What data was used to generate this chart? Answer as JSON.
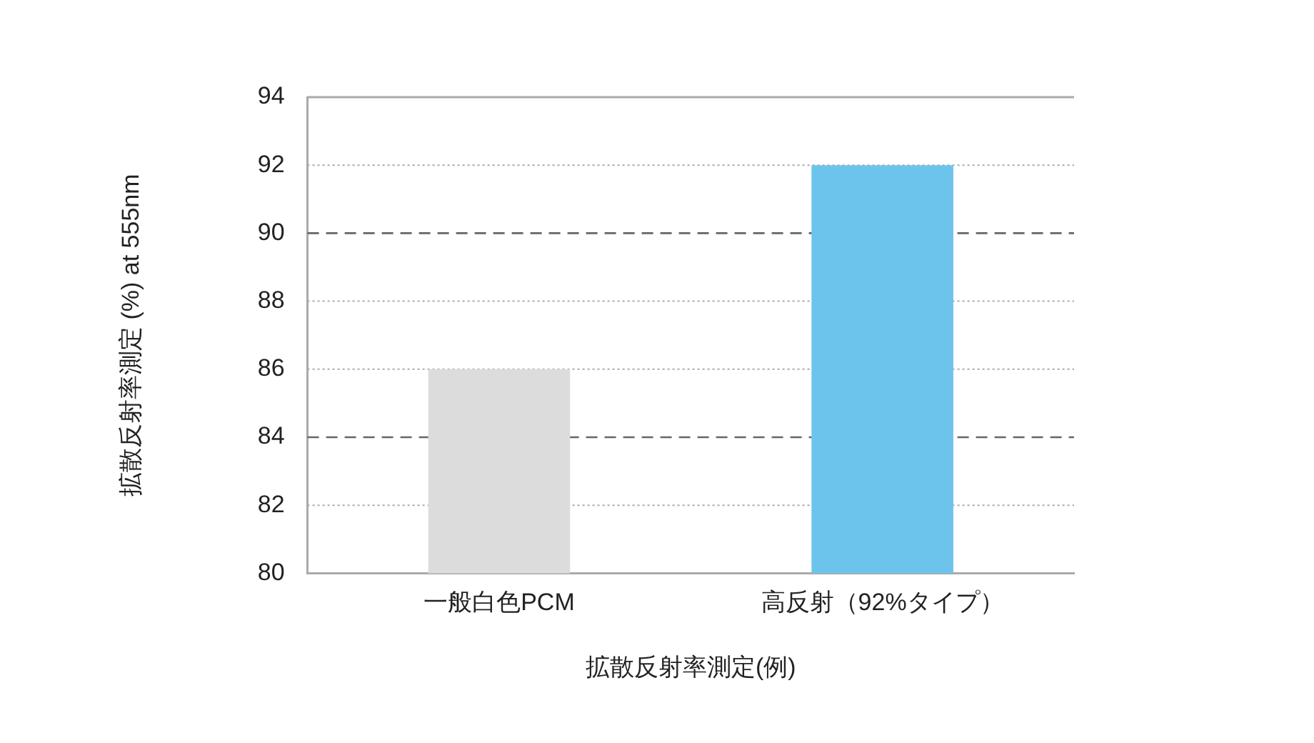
{
  "chart_data": {
    "type": "bar",
    "xlabel": "拡散反射率測定(例)",
    "ylabel": "拡散反射率測定 (%) at 555nm",
    "categories": [
      "一般白色PCM",
      "高反射（92%タイプ）"
    ],
    "values": [
      86,
      92
    ],
    "colors": [
      "#dcdcdc",
      "#6cc4ec"
    ],
    "ylim": [
      80,
      94
    ],
    "yticks": [
      80,
      82,
      84,
      86,
      88,
      90,
      92,
      94
    ],
    "grid": "y",
    "legend": false
  }
}
